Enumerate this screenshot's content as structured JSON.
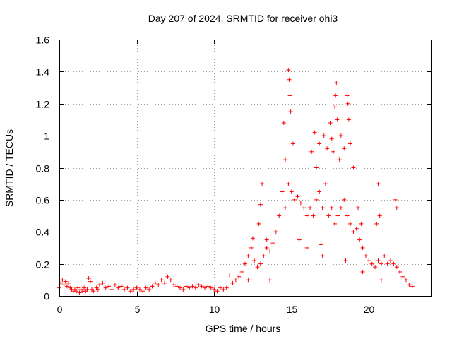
{
  "chart_data": {
    "type": "scatter",
    "title": "Day 207 of 2024, SRMTID for receiver ohi3",
    "xlabel": "GPS time / hours",
    "ylabel": "SRMTID / TECUs",
    "xlim": [
      0,
      24
    ],
    "ylim": [
      0,
      1.6
    ],
    "xticks": [
      0,
      5,
      10,
      15,
      20
    ],
    "xtick_labels": [
      "0",
      "5",
      "10",
      "15",
      "20"
    ],
    "yticks": [
      0,
      0.2,
      0.4,
      0.6,
      0.8,
      1.0,
      1.2,
      1.4,
      1.6
    ],
    "ytick_labels": [
      "0",
      "0.2",
      "0.4",
      "0.6",
      "0.8",
      "1",
      "1.2",
      "1.4",
      "1.6"
    ],
    "grid": true,
    "marker": "+",
    "color": "#ff0000",
    "series": [
      {
        "name": "SRMTID",
        "points": [
          [
            0.0,
            0.05
          ],
          [
            0.1,
            0.08
          ],
          [
            0.2,
            0.1
          ],
          [
            0.3,
            0.07
          ],
          [
            0.4,
            0.09
          ],
          [
            0.5,
            0.06
          ],
          [
            0.6,
            0.08
          ],
          [
            0.7,
            0.05
          ],
          [
            0.8,
            0.04
          ],
          [
            0.9,
            0.03
          ],
          [
            1.0,
            0.04
          ],
          [
            1.1,
            0.03
          ],
          [
            1.2,
            0.05
          ],
          [
            1.3,
            0.02
          ],
          [
            1.4,
            0.04
          ],
          [
            1.5,
            0.03
          ],
          [
            1.6,
            0.05
          ],
          [
            1.7,
            0.03
          ],
          [
            1.8,
            0.04
          ],
          [
            1.9,
            0.11
          ],
          [
            2.0,
            0.09
          ],
          [
            2.1,
            0.04
          ],
          [
            2.2,
            0.03
          ],
          [
            2.4,
            0.05
          ],
          [
            2.5,
            0.04
          ],
          [
            2.6,
            0.07
          ],
          [
            2.8,
            0.08
          ],
          [
            3.0,
            0.05
          ],
          [
            3.2,
            0.06
          ],
          [
            3.4,
            0.04
          ],
          [
            3.6,
            0.07
          ],
          [
            3.8,
            0.05
          ],
          [
            4.0,
            0.06
          ],
          [
            4.2,
            0.04
          ],
          [
            4.4,
            0.05
          ],
          [
            4.6,
            0.03
          ],
          [
            4.8,
            0.04
          ],
          [
            5.0,
            0.05
          ],
          [
            5.2,
            0.04
          ],
          [
            5.4,
            0.03
          ],
          [
            5.6,
            0.05
          ],
          [
            5.8,
            0.04
          ],
          [
            6.0,
            0.06
          ],
          [
            6.2,
            0.08
          ],
          [
            6.4,
            0.07
          ],
          [
            6.6,
            0.1
          ],
          [
            6.8,
            0.08
          ],
          [
            7.0,
            0.12
          ],
          [
            7.2,
            0.1
          ],
          [
            7.4,
            0.07
          ],
          [
            7.6,
            0.06
          ],
          [
            7.8,
            0.05
          ],
          [
            8.0,
            0.04
          ],
          [
            8.2,
            0.06
          ],
          [
            8.4,
            0.05
          ],
          [
            8.6,
            0.06
          ],
          [
            8.8,
            0.05
          ],
          [
            9.0,
            0.07
          ],
          [
            9.2,
            0.06
          ],
          [
            9.4,
            0.05
          ],
          [
            9.6,
            0.06
          ],
          [
            9.8,
            0.05
          ],
          [
            10.0,
            0.04
          ],
          [
            10.2,
            0.03
          ],
          [
            10.4,
            0.05
          ],
          [
            10.6,
            0.04
          ],
          [
            10.8,
            0.05
          ],
          [
            11.0,
            0.13
          ],
          [
            11.2,
            0.08
          ],
          [
            11.4,
            0.1
          ],
          [
            11.6,
            0.12
          ],
          [
            11.8,
            0.15
          ],
          [
            12.0,
            0.2
          ],
          [
            12.2,
            0.25
          ],
          [
            12.4,
            0.3
          ],
          [
            12.6,
            0.22
          ],
          [
            12.8,
            0.18
          ],
          [
            13.0,
            0.2
          ],
          [
            13.2,
            0.25
          ],
          [
            13.4,
            0.35
          ],
          [
            13.6,
            0.28
          ],
          [
            13.8,
            0.33
          ],
          [
            14.0,
            0.4
          ],
          [
            14.2,
            0.5
          ],
          [
            14.4,
            0.65
          ],
          [
            14.6,
            0.55
          ],
          [
            14.8,
            0.7
          ],
          [
            15.0,
            0.65
          ],
          [
            15.2,
            0.6
          ],
          [
            15.4,
            0.62
          ],
          [
            15.6,
            0.58
          ],
          [
            15.8,
            0.55
          ],
          [
            16.0,
            0.5
          ],
          [
            16.2,
            0.55
          ],
          [
            16.4,
            0.5
          ],
          [
            16.6,
            0.6
          ],
          [
            16.8,
            0.65
          ],
          [
            17.0,
            0.55
          ],
          [
            17.2,
            0.7
          ],
          [
            17.4,
            0.5
          ],
          [
            17.6,
            0.55
          ],
          [
            17.8,
            0.45
          ],
          [
            18.0,
            0.5
          ],
          [
            18.2,
            0.55
          ],
          [
            18.4,
            0.6
          ],
          [
            18.6,
            0.5
          ],
          [
            18.8,
            0.45
          ],
          [
            19.0,
            0.4
          ],
          [
            19.2,
            0.42
          ],
          [
            19.4,
            0.35
          ],
          [
            19.6,
            0.3
          ],
          [
            19.8,
            0.25
          ],
          [
            20.0,
            0.22
          ],
          [
            20.2,
            0.2
          ],
          [
            20.4,
            0.18
          ],
          [
            20.6,
            0.22
          ],
          [
            20.8,
            0.2
          ],
          [
            21.0,
            0.25
          ],
          [
            21.2,
            0.2
          ],
          [
            21.4,
            0.22
          ],
          [
            21.6,
            0.2
          ],
          [
            21.8,
            0.18
          ],
          [
            22.0,
            0.15
          ],
          [
            22.2,
            0.12
          ],
          [
            22.4,
            0.1
          ],
          [
            22.6,
            0.07
          ],
          [
            22.8,
            0.06
          ]
        ],
        "peaks": [
          [
            12.5,
            0.36
          ],
          [
            12.9,
            0.45
          ],
          [
            13.0,
            0.57
          ],
          [
            13.1,
            0.7
          ],
          [
            13.4,
            0.3
          ],
          [
            14.5,
            1.08
          ],
          [
            14.6,
            0.85
          ],
          [
            14.8,
            1.41
          ],
          [
            14.85,
            1.35
          ],
          [
            14.9,
            1.25
          ],
          [
            14.95,
            1.15
          ],
          [
            15.1,
            0.95
          ],
          [
            16.3,
            0.9
          ],
          [
            16.5,
            1.02
          ],
          [
            16.6,
            0.8
          ],
          [
            16.8,
            0.95
          ],
          [
            17.1,
            1.0
          ],
          [
            17.3,
            0.92
          ],
          [
            17.5,
            1.08
          ],
          [
            17.6,
            0.98
          ],
          [
            17.7,
            0.9
          ],
          [
            17.8,
            1.18
          ],
          [
            17.85,
            1.25
          ],
          [
            17.9,
            1.33
          ],
          [
            17.95,
            1.1
          ],
          [
            18.1,
            0.85
          ],
          [
            18.2,
            1.0
          ],
          [
            18.4,
            0.92
          ],
          [
            18.6,
            1.25
          ],
          [
            18.65,
            1.2
          ],
          [
            18.7,
            1.1
          ],
          [
            18.8,
            0.95
          ],
          [
            19.0,
            0.8
          ],
          [
            19.3,
            0.55
          ],
          [
            19.5,
            0.45
          ],
          [
            20.5,
            0.45
          ],
          [
            20.6,
            0.7
          ],
          [
            20.7,
            0.5
          ],
          [
            21.7,
            0.6
          ],
          [
            21.8,
            0.55
          ],
          [
            12.2,
            0.1
          ],
          [
            13.6,
            0.1
          ],
          [
            16.0,
            0.3
          ],
          [
            17.0,
            0.25
          ],
          [
            18.0,
            0.28
          ],
          [
            18.5,
            0.22
          ],
          [
            19.6,
            0.15
          ],
          [
            20.8,
            0.1
          ],
          [
            15.5,
            0.35
          ],
          [
            16.9,
            0.32
          ]
        ]
      }
    ]
  }
}
